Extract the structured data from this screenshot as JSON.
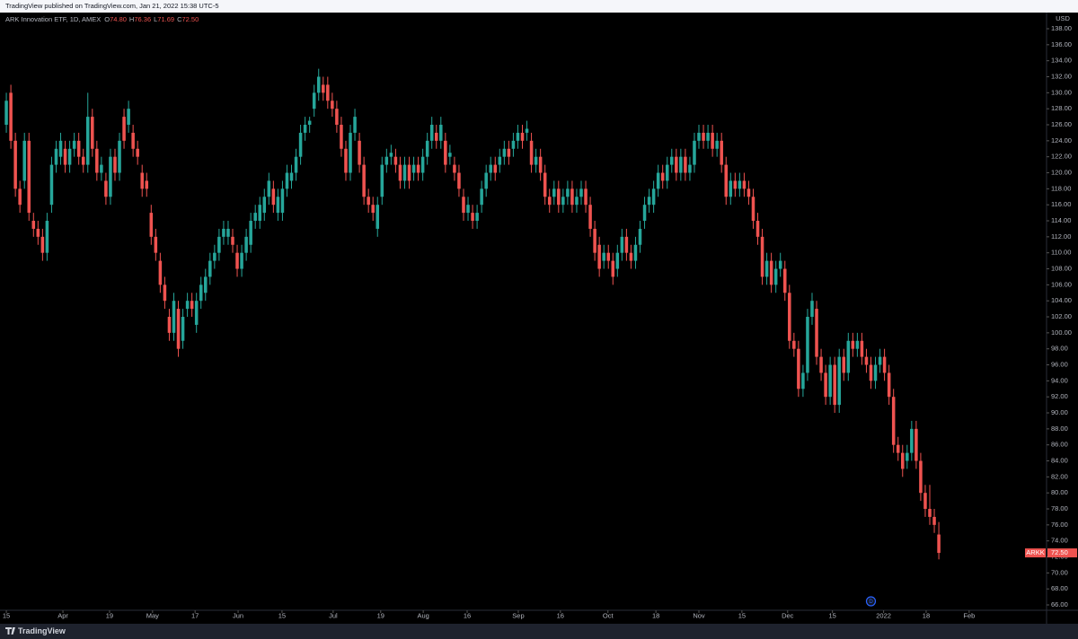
{
  "header": {
    "published": "TradingView published on TradingView.com, Jan 21, 2022 15:38 UTC-5"
  },
  "footer": {
    "brand": "TradingView"
  },
  "chart_data": {
    "type": "candlestick",
    "symbol_title": "ARK Innovation ETF, 1D, AMEX",
    "ohlc_legend": [
      {
        "key": "O",
        "value": "74.80"
      },
      {
        "key": "H",
        "value": "76.36"
      },
      {
        "key": "L",
        "value": "71.69"
      },
      {
        "key": "C",
        "value": "72.50"
      }
    ],
    "currency": "USD",
    "symbol": "ARKK",
    "last_price_label": "72.50",
    "event_marker": "D",
    "up_color": "#26a69a",
    "down_color": "#ef5350",
    "xlim": [
      -1.4,
      229.8
    ],
    "ylim": [
      65.33,
      140.02
    ],
    "xticks": [
      {
        "value": 0,
        "label": "15"
      },
      {
        "value": 12.5,
        "label": "Apr"
      },
      {
        "value": 22.8,
        "label": "19"
      },
      {
        "value": 32.3,
        "label": "May"
      },
      {
        "value": 41.7,
        "label": "17"
      },
      {
        "value": 51.2,
        "label": "Jun"
      },
      {
        "value": 60.9,
        "label": "15"
      },
      {
        "value": 72.2,
        "label": "Jul"
      },
      {
        "value": 82.7,
        "label": "19"
      },
      {
        "value": 92.1,
        "label": "Aug"
      },
      {
        "value": 101.8,
        "label": "16"
      },
      {
        "value": 113.1,
        "label": "Sep"
      },
      {
        "value": 122.4,
        "label": "16"
      },
      {
        "value": 132.9,
        "label": "Oct"
      },
      {
        "value": 143.5,
        "label": "18"
      },
      {
        "value": 153,
        "label": "Nov"
      },
      {
        "value": 162.5,
        "label": "15"
      },
      {
        "value": 172.6,
        "label": "Dec"
      },
      {
        "value": 182.5,
        "label": "15"
      },
      {
        "value": 193.8,
        "label": "2022"
      },
      {
        "value": 203.2,
        "label": "18"
      },
      {
        "value": 212.7,
        "label": "Feb"
      }
    ],
    "yticks": [
      {
        "value": 138,
        "label": "138.00"
      },
      {
        "value": 136,
        "label": "136.00"
      },
      {
        "value": 134,
        "label": "134.00"
      },
      {
        "value": 132,
        "label": "132.00"
      },
      {
        "value": 130,
        "label": "130.00"
      },
      {
        "value": 128,
        "label": "128.00"
      },
      {
        "value": 126,
        "label": "126.00"
      },
      {
        "value": 124,
        "label": "124.00"
      },
      {
        "value": 122,
        "label": "122.00"
      },
      {
        "value": 120,
        "label": "120.00"
      },
      {
        "value": 118,
        "label": "118.00"
      },
      {
        "value": 116,
        "label": "116.00"
      },
      {
        "value": 114,
        "label": "114.00"
      },
      {
        "value": 112,
        "label": "112.00"
      },
      {
        "value": 110,
        "label": "110.00"
      },
      {
        "value": 108,
        "label": "108.00"
      },
      {
        "value": 106,
        "label": "106.00"
      },
      {
        "value": 104,
        "label": "104.00"
      },
      {
        "value": 102,
        "label": "102.00"
      },
      {
        "value": 100,
        "label": "100.00"
      },
      {
        "value": 98,
        "label": "98.00"
      },
      {
        "value": 96,
        "label": "96.00"
      },
      {
        "value": 94,
        "label": "94.00"
      },
      {
        "value": 92,
        "label": "92.00"
      },
      {
        "value": 90,
        "label": "90.00"
      },
      {
        "value": 88,
        "label": "88.00"
      },
      {
        "value": 86,
        "label": "86.00"
      },
      {
        "value": 84,
        "label": "84.00"
      },
      {
        "value": 82,
        "label": "82.00"
      },
      {
        "value": 80,
        "label": "80.00"
      },
      {
        "value": 78,
        "label": "78.00"
      },
      {
        "value": 76,
        "label": "76.00"
      },
      {
        "value": 74,
        "label": "74.00"
      },
      {
        "value": 72,
        "label": "72.00"
      },
      {
        "value": 70,
        "label": "70.00"
      },
      {
        "value": 68,
        "label": "68.00"
      },
      {
        "value": 66,
        "label": "66.00"
      }
    ],
    "last_price": 72.5,
    "ohlc": [
      [
        126,
        130,
        125,
        129
      ],
      [
        130,
        131,
        123,
        124
      ],
      [
        124,
        125,
        117,
        118
      ],
      [
        118,
        119,
        115,
        116
      ],
      [
        119,
        125,
        118,
        124
      ],
      [
        124,
        125,
        114,
        115
      ],
      [
        114,
        115,
        112,
        113
      ],
      [
        113,
        114,
        111,
        112
      ],
      [
        112,
        113,
        109,
        110
      ],
      [
        110,
        115,
        109,
        114
      ],
      [
        116,
        122,
        115,
        121
      ],
      [
        121,
        124,
        120,
        123
      ],
      [
        122,
        125,
        121,
        124
      ],
      [
        123,
        124,
        120,
        121
      ],
      [
        121,
        124,
        120,
        123
      ],
      [
        123,
        125,
        122,
        124
      ],
      [
        124,
        125,
        121,
        122
      ],
      [
        122,
        123,
        120,
        121
      ],
      [
        121,
        130,
        120,
        127
      ],
      [
        127,
        128,
        122,
        123
      ],
      [
        123,
        124,
        119,
        120
      ],
      [
        120,
        122,
        119,
        121
      ],
      [
        119,
        120,
        116,
        117
      ],
      [
        117,
        123,
        116,
        122
      ],
      [
        122,
        123,
        119,
        120
      ],
      [
        120,
        125,
        119,
        124
      ],
      [
        127,
        128,
        123,
        124
      ],
      [
        126,
        129,
        125,
        128
      ],
      [
        125,
        126,
        122,
        123
      ],
      [
        123,
        124,
        121,
        122
      ],
      [
        120,
        121,
        117,
        118
      ],
      [
        119,
        120,
        117,
        118
      ],
      [
        115,
        116,
        111,
        112
      ],
      [
        112,
        113,
        109,
        110
      ],
      [
        109,
        110,
        105,
        106
      ],
      [
        106,
        107,
        103,
        104
      ],
      [
        102,
        103,
        99,
        100
      ],
      [
        100,
        105,
        99,
        104
      ],
      [
        103,
        104,
        97,
        98
      ],
      [
        99,
        103,
        98,
        102
      ],
      [
        103,
        105,
        102,
        104
      ],
      [
        104,
        105,
        102,
        103
      ],
      [
        101,
        105,
        100,
        104
      ],
      [
        104,
        107,
        103,
        106
      ],
      [
        105,
        108,
        104,
        107
      ],
      [
        107,
        110,
        106,
        109
      ],
      [
        109,
        111,
        108,
        110
      ],
      [
        110,
        113,
        109,
        112
      ],
      [
        112,
        114,
        111,
        113
      ],
      [
        112,
        114,
        111,
        113
      ],
      [
        112,
        113,
        110,
        111
      ],
      [
        110,
        111,
        107,
        108
      ],
      [
        108,
        111,
        107,
        110
      ],
      [
        110,
        113,
        109,
        112
      ],
      [
        111,
        115,
        110,
        114
      ],
      [
        114,
        116,
        113,
        115
      ],
      [
        114,
        117,
        113,
        116
      ],
      [
        115,
        118,
        114,
        117
      ],
      [
        117,
        120,
        116,
        119
      ],
      [
        118,
        119,
        115,
        116
      ],
      [
        115,
        118,
        114,
        117
      ],
      [
        115,
        119,
        114,
        118
      ],
      [
        118,
        121,
        117,
        120
      ],
      [
        119,
        121,
        118,
        120
      ],
      [
        120,
        123,
        119,
        122
      ],
      [
        122,
        126,
        121,
        125
      ],
      [
        125,
        127,
        124,
        126
      ],
      [
        126,
        127,
        125,
        126.5
      ],
      [
        128,
        131,
        127,
        130
      ],
      [
        130,
        133,
        129,
        132
      ],
      [
        131,
        132,
        129,
        130
      ],
      [
        131,
        132,
        128,
        129
      ],
      [
        129,
        130,
        127,
        128
      ],
      [
        128,
        129,
        125,
        126
      ],
      [
        126,
        127,
        122,
        123
      ],
      [
        123,
        124,
        119,
        120
      ],
      [
        120,
        126,
        119,
        125
      ],
      [
        125,
        128,
        124,
        127
      ],
      [
        124,
        125,
        120,
        121
      ],
      [
        121,
        122,
        116,
        117
      ],
      [
        117,
        118,
        115,
        116
      ],
      [
        116,
        117,
        114,
        115
      ],
      [
        113,
        117,
        112,
        116
      ],
      [
        117,
        122,
        116,
        121
      ],
      [
        121,
        123,
        120,
        122
      ],
      [
        122,
        123.5,
        121,
        122.5
      ],
      [
        122,
        123,
        120,
        121
      ],
      [
        121,
        122,
        118,
        119
      ],
      [
        119,
        122,
        118,
        121
      ],
      [
        121,
        122,
        118,
        119
      ],
      [
        120,
        122,
        119,
        121
      ],
      [
        121,
        122,
        119,
        120
      ],
      [
        120,
        123,
        119,
        122
      ],
      [
        122,
        125,
        121,
        124
      ],
      [
        124,
        127,
        123,
        126
      ],
      [
        125,
        126,
        123,
        124
      ],
      [
        124,
        127,
        123,
        126
      ],
      [
        124,
        125,
        120,
        121
      ],
      [
        122,
        123.5,
        121,
        122.5
      ],
      [
        121,
        122,
        119,
        120
      ],
      [
        120,
        121,
        117,
        118
      ],
      [
        117,
        118,
        114,
        115
      ],
      [
        115,
        117,
        114,
        116
      ],
      [
        115,
        116,
        113,
        114
      ],
      [
        114,
        116,
        113,
        115
      ],
      [
        116,
        119,
        115,
        118
      ],
      [
        118,
        121,
        117,
        120
      ],
      [
        120,
        122,
        119,
        121
      ],
      [
        121,
        122,
        119,
        120
      ],
      [
        121,
        123,
        120,
        122
      ],
      [
        122,
        124,
        121,
        123
      ],
      [
        123,
        124,
        121,
        122
      ],
      [
        123,
        125,
        122,
        124
      ],
      [
        124,
        126,
        123,
        125
      ],
      [
        125,
        126,
        123,
        124
      ],
      [
        125,
        126.5,
        124,
        125.5
      ],
      [
        124,
        125,
        120,
        121
      ],
      [
        121,
        123,
        120,
        122
      ],
      [
        122,
        123,
        119,
        120
      ],
      [
        120,
        121,
        116,
        117
      ],
      [
        117,
        118,
        115,
        116
      ],
      [
        117,
        119,
        116,
        118
      ],
      [
        118,
        119,
        115,
        116
      ],
      [
        116,
        118,
        115,
        117
      ],
      [
        117,
        119,
        116,
        118
      ],
      [
        118,
        119,
        115,
        116
      ],
      [
        116,
        118,
        115,
        117
      ],
      [
        117,
        119,
        116,
        118
      ],
      [
        118,
        119,
        115,
        116
      ],
      [
        116,
        117,
        112,
        113
      ],
      [
        113,
        114,
        109,
        110
      ],
      [
        111,
        112,
        107,
        108
      ],
      [
        109,
        111,
        108,
        110
      ],
      [
        110,
        111,
        108,
        109
      ],
      [
        109,
        110,
        106,
        107
      ],
      [
        108,
        111,
        107,
        110
      ],
      [
        110,
        113,
        109,
        112
      ],
      [
        112,
        113,
        109,
        110
      ],
      [
        110,
        111,
        108,
        109
      ],
      [
        109,
        112,
        108,
        111
      ],
      [
        111,
        114,
        110,
        113
      ],
      [
        114,
        117,
        113,
        116
      ],
      [
        116,
        118,
        115,
        117
      ],
      [
        116,
        119,
        115,
        118
      ],
      [
        118,
        121,
        117,
        120
      ],
      [
        120,
        121,
        118,
        119
      ],
      [
        119,
        122,
        118,
        121
      ],
      [
        121,
        123,
        120,
        122
      ],
      [
        122,
        123,
        119,
        120
      ],
      [
        120,
        123,
        119,
        122
      ],
      [
        122,
        123,
        119,
        120
      ],
      [
        120,
        122,
        119,
        121
      ],
      [
        121,
        125,
        120,
        124
      ],
      [
        124,
        126,
        123,
        125
      ],
      [
        125,
        126,
        123,
        124
      ],
      [
        124,
        126,
        123,
        125
      ],
      [
        125,
        126,
        122,
        123
      ],
      [
        123,
        125,
        122,
        124
      ],
      [
        124,
        125,
        120,
        121
      ],
      [
        121,
        122,
        116,
        117
      ],
      [
        117,
        120,
        116,
        119
      ],
      [
        119,
        120,
        117,
        118
      ],
      [
        118,
        120,
        117,
        119
      ],
      [
        119,
        120,
        117,
        118
      ],
      [
        118,
        119,
        116,
        117
      ],
      [
        117,
        118,
        113,
        114
      ],
      [
        114,
        115,
        111,
        112
      ],
      [
        112,
        113,
        106,
        107
      ],
      [
        107,
        110,
        106,
        109
      ],
      [
        109,
        110,
        105,
        106
      ],
      [
        106,
        109,
        105,
        108
      ],
      [
        108,
        110,
        107,
        109
      ],
      [
        108,
        109,
        104,
        105
      ],
      [
        105,
        106,
        98,
        99
      ],
      [
        99,
        100,
        97,
        98
      ],
      [
        98,
        99,
        92,
        93
      ],
      [
        93,
        96,
        92,
        95
      ],
      [
        95,
        103,
        94,
        102
      ],
      [
        102,
        105,
        101,
        104
      ],
      [
        103,
        104,
        96,
        97
      ],
      [
        97,
        98,
        94,
        95
      ],
      [
        95,
        96,
        91,
        92
      ],
      [
        92,
        97,
        91,
        96
      ],
      [
        96,
        97,
        90,
        91
      ],
      [
        91,
        98,
        90,
        97
      ],
      [
        97,
        98,
        94,
        95
      ],
      [
        95,
        100,
        94,
        99
      ],
      [
        99,
        100,
        97,
        98
      ],
      [
        98,
        100,
        97,
        99
      ],
      [
        99,
        100,
        96,
        97
      ],
      [
        97,
        98,
        95,
        96
      ],
      [
        96,
        97,
        93,
        94
      ],
      [
        94,
        97,
        93,
        96
      ],
      [
        96,
        98,
        95,
        97
      ],
      [
        97,
        98,
        94,
        95
      ],
      [
        95,
        96,
        91,
        92
      ],
      [
        92,
        93,
        85,
        86
      ],
      [
        86,
        87,
        84,
        85
      ],
      [
        85,
        86,
        82,
        83
      ],
      [
        84,
        86,
        83,
        85
      ],
      [
        85,
        89,
        84,
        88
      ],
      [
        88,
        89,
        83,
        84
      ],
      [
        84,
        85,
        79,
        80
      ],
      [
        80,
        81,
        77,
        78
      ],
      [
        78,
        81,
        76,
        77
      ],
      [
        77,
        78,
        75,
        76
      ],
      [
        74.8,
        76.36,
        71.69,
        72.5
      ]
    ],
    "event_index": 191
  }
}
